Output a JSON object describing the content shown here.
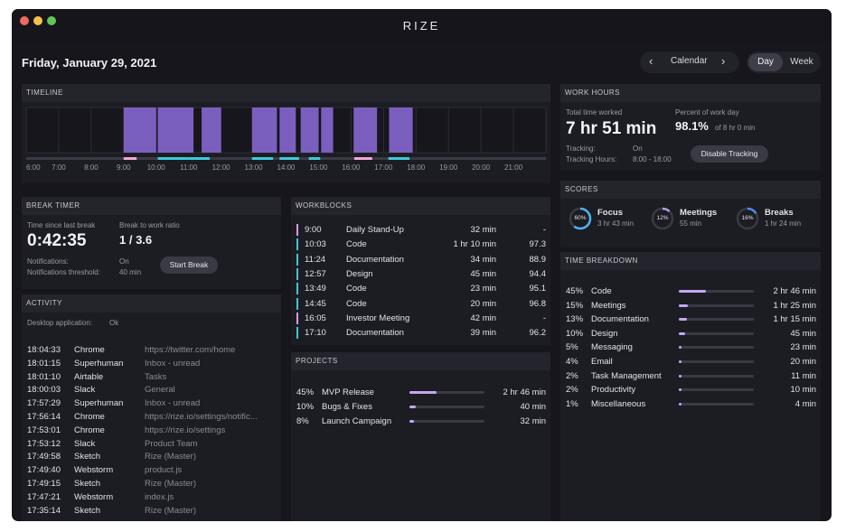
{
  "app": {
    "title": "RIZE"
  },
  "header": {
    "date": "Friday, January 29, 2021",
    "calendar_label": "Calendar",
    "view_day": "Day",
    "view_week": "Week"
  },
  "timeline": {
    "title": "TIMELINE",
    "hours": [
      "6:00",
      "7:00",
      "8:00",
      "9:00",
      "10:00",
      "11:00",
      "12:00",
      "13:00",
      "14:00",
      "15:00",
      "16:00",
      "17:00",
      "18:00",
      "19:00",
      "20:00",
      "21:00"
    ]
  },
  "work_hours": {
    "title": "WORK HOURS",
    "total_label": "Total time worked",
    "total_value": "7 hr 51 min",
    "percent_label": "Percent of work day",
    "percent_value": "98.1%",
    "percent_sub": "of 8 hr 0 min",
    "tracking_label": "Tracking:",
    "tracking_value": "On",
    "tracking_hours_label": "Tracking Hours:",
    "tracking_hours_value": "8:00 - 18:00",
    "disable_button": "Disable Tracking"
  },
  "scores": {
    "title": "SCORES",
    "items": [
      {
        "pct": "60%",
        "name": "Focus",
        "time": "3 hr 43 min",
        "value": 0.6,
        "color": "#4fb3f0"
      },
      {
        "pct": "12%",
        "name": "Meetings",
        "time": "55 min",
        "value": 0.12,
        "color": "#b49de8"
      },
      {
        "pct": "16%",
        "name": "Breaks",
        "time": "1 hr 24 min",
        "value": 0.16,
        "color": "#4f8af0"
      }
    ]
  },
  "break_timer": {
    "title": "BREAK TIMER",
    "since_label": "Time since last break",
    "since_value": "0:42:35",
    "ratio_label": "Break to work ratio",
    "ratio_value": "1 / 3.6",
    "notifications_label": "Notifications:",
    "notifications_value": "On",
    "threshold_label": "Notifications threshold:",
    "threshold_value": "40 min",
    "start_button": "Start Break"
  },
  "workblocks": {
    "title": "WORKBLOCKS",
    "rows": [
      {
        "time": "9:00",
        "name": "Daily Stand-Up",
        "duration": "32 min",
        "score": "-",
        "color": "#d79be0"
      },
      {
        "time": "10:03",
        "name": "Code",
        "duration": "1 hr 10 min",
        "score": "97.3",
        "color": "#3fc8d8"
      },
      {
        "time": "11:24",
        "name": "Documentation",
        "duration": "34 min",
        "score": "88.9",
        "color": "#3fc8d8"
      },
      {
        "time": "12:57",
        "name": "Design",
        "duration": "45 min",
        "score": "94.4",
        "color": "#3fc8d8"
      },
      {
        "time": "13:49",
        "name": "Code",
        "duration": "23 min",
        "score": "95.1",
        "color": "#3fc8d8"
      },
      {
        "time": "14:45",
        "name": "Code",
        "duration": "20 min",
        "score": "96.8",
        "color": "#3fc8d8"
      },
      {
        "time": "16:05",
        "name": "Investor Meeting",
        "duration": "42 min",
        "score": "-",
        "color": "#d79be0"
      },
      {
        "time": "17:10",
        "name": "Documentation",
        "duration": "39 min",
        "score": "96.2",
        "color": "#3fc8d8"
      }
    ]
  },
  "time_breakdown": {
    "title": "TIME BREAKDOWN",
    "rows": [
      {
        "pct": "45%",
        "name": "Code",
        "value": 0.45,
        "time": "2 hr 46 min"
      },
      {
        "pct": "15%",
        "name": "Meetings",
        "value": 0.15,
        "time": "1 hr 25 min"
      },
      {
        "pct": "13%",
        "name": "Documentation",
        "value": 0.13,
        "time": "1 hr 15 min"
      },
      {
        "pct": "10%",
        "name": "Design",
        "value": 0.1,
        "time": "45 min"
      },
      {
        "pct": "5%",
        "name": "Messaging",
        "value": 0.05,
        "time": "23 min"
      },
      {
        "pct": "4%",
        "name": "Email",
        "value": 0.04,
        "time": "20 min"
      },
      {
        "pct": "2%",
        "name": "Task Management",
        "value": 0.02,
        "time": "11 min"
      },
      {
        "pct": "2%",
        "name": "Productivity",
        "value": 0.02,
        "time": "10 min"
      },
      {
        "pct": "1%",
        "name": "Miscellaneous",
        "value": 0.01,
        "time": "4 min"
      }
    ]
  },
  "activity": {
    "title": "ACTIVITY",
    "desktop_label": "Desktop application:",
    "desktop_value": "Ok",
    "rows": [
      {
        "time": "18:04:33",
        "app": "Chrome",
        "detail": "https://twitter.com/home"
      },
      {
        "time": "18:01:15",
        "app": "Superhuman",
        "detail": "Inbox - unread"
      },
      {
        "time": "18:01:10",
        "app": "Airtable",
        "detail": "Tasks"
      },
      {
        "time": "18:00:03",
        "app": "Slack",
        "detail": "General"
      },
      {
        "time": "17:57:29",
        "app": "Superhuman",
        "detail": "Inbox - unread"
      },
      {
        "time": "17:56:14",
        "app": "Chrome",
        "detail": "https://rize.io/settings/notific..."
      },
      {
        "time": "17:53:01",
        "app": "Chrome",
        "detail": "https://rize.io/settings"
      },
      {
        "time": "17:53:12",
        "app": "Slack",
        "detail": "Product Team"
      },
      {
        "time": "17:49:58",
        "app": "Sketch",
        "detail": "Rize (Master)"
      },
      {
        "time": "17:49:40",
        "app": "Webstorm",
        "detail": "product.js"
      },
      {
        "time": "17:49:15",
        "app": "Sketch",
        "detail": "Rize (Master)"
      },
      {
        "time": "17:47:21",
        "app": "Webstorm",
        "detail": "index.js"
      },
      {
        "time": "17:35:14",
        "app": "Sketch",
        "detail": "Rize (Master)"
      }
    ]
  },
  "projects": {
    "title": "PROJECTS",
    "rows": [
      {
        "pct": "45%",
        "name": "MVP Release",
        "value": 0.45,
        "time": "2 hr 46 min"
      },
      {
        "pct": "10%",
        "name": "Bugs & Fixes",
        "value": 0.1,
        "time": "40 min"
      },
      {
        "pct": "8%",
        "name": "Launch Campaign",
        "value": 0.08,
        "time": "32 min"
      }
    ]
  },
  "colors": {
    "accent": "#c3a8f0",
    "block": "#7b5fbf",
    "cyan": "#3fc8d8",
    "pink": "#f2a8d8"
  }
}
